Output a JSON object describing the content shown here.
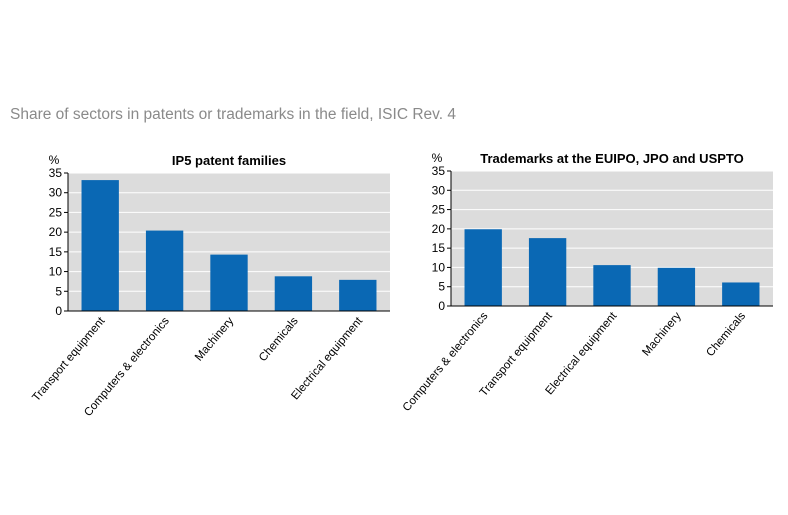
{
  "subtitle": "Share of sectors in patents or trademarks in the field, ISIC Rev. 4",
  "colors": {
    "bar": "#0a68b4",
    "plot_bg": "#dcdcdc",
    "grid": "#ffffff"
  },
  "chart_data": [
    {
      "type": "bar",
      "title": "IP5 patent families",
      "unit_label": "%",
      "categories": [
        "Transport equipment",
        "Computers & electronics",
        "Machinery",
        "Chemicals",
        "Electrical equipment"
      ],
      "values": [
        33.2,
        20.4,
        14.3,
        8.8,
        7.9
      ],
      "ylim": [
        0,
        35
      ],
      "yticks": [
        0,
        5,
        10,
        15,
        20,
        25,
        30,
        35
      ],
      "grid": true
    },
    {
      "type": "bar",
      "title": "Trademarks at the EUIPO, JPO and USPTO",
      "unit_label": "%",
      "categories": [
        "Computers & electronics",
        "Transport equipment",
        "Electrical equipment",
        "Machinery",
        "Chemicals"
      ],
      "values": [
        19.9,
        17.6,
        10.6,
        9.9,
        6.1
      ],
      "ylim": [
        0,
        35
      ],
      "yticks": [
        0,
        5,
        10,
        15,
        20,
        25,
        30,
        35
      ],
      "grid": true
    }
  ]
}
